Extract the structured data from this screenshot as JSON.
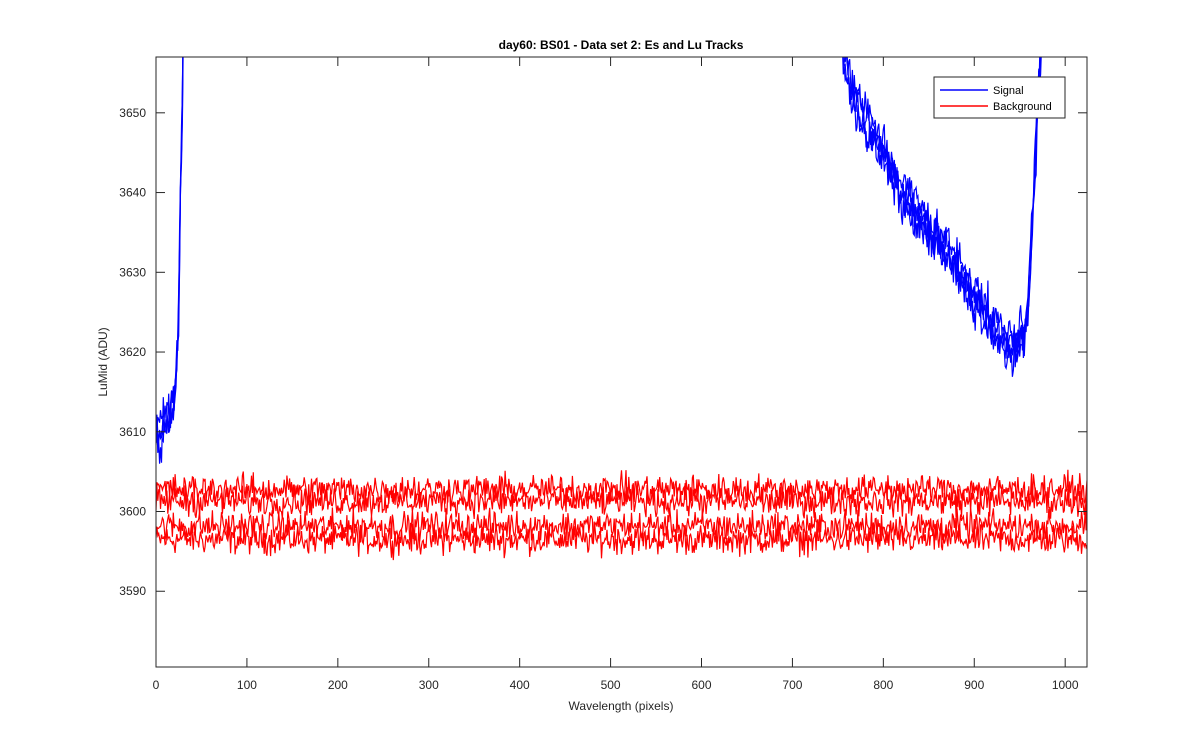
{
  "chart_data": {
    "type": "line",
    "title": "day60: BS01 - Data set 2: Es and Lu Tracks",
    "xlabel": "Wavelength (pixels)",
    "ylabel": "LuMid (ADU)",
    "xlim": [
      0,
      1024
    ],
    "ylim": [
      3580.5,
      3657
    ],
    "xticks": [
      0,
      100,
      200,
      300,
      400,
      500,
      600,
      700,
      800,
      900,
      1000
    ],
    "yticks": [
      3590,
      3600,
      3610,
      3620,
      3630,
      3640,
      3650
    ],
    "grid": false,
    "legend_position": "top-right",
    "legend": [
      "Signal",
      "Background"
    ],
    "series": [
      {
        "name": "Signal",
        "color": "#0000ff",
        "count": 4,
        "noise": 1.8,
        "segments": [
          {
            "x": [
              0,
              5,
              10,
              15,
              20,
              22,
              25,
              27,
              29,
              30
            ],
            "y": [
              3609,
              3610,
              3611,
              3612,
              3614,
              3617,
              3625,
              3640,
              3652,
              3662
            ]
          },
          {
            "x": [
              752,
              760,
              780,
              800,
              820,
              840,
              860,
              880,
              900,
              920,
              935,
              945,
              955,
              958,
              962,
              966,
              970,
              975
            ],
            "y": [
              3662,
              3654,
              3649,
              3645,
              3640,
              3637,
              3634,
              3631,
              3627,
              3623,
              3621,
              3621,
              3622,
              3624,
              3632,
              3642,
              3652,
              3662
            ]
          }
        ],
        "offsets": [
          -2.2,
          -0.7,
          0.8,
          2.2
        ]
      },
      {
        "name": "Background",
        "color": "#ff0000",
        "count": 4,
        "noise": 1.3,
        "x_range": [
          0,
          1024
        ],
        "levels": [
          3596.5,
          3598.2,
          3601.3,
          3602.8
        ]
      }
    ]
  }
}
